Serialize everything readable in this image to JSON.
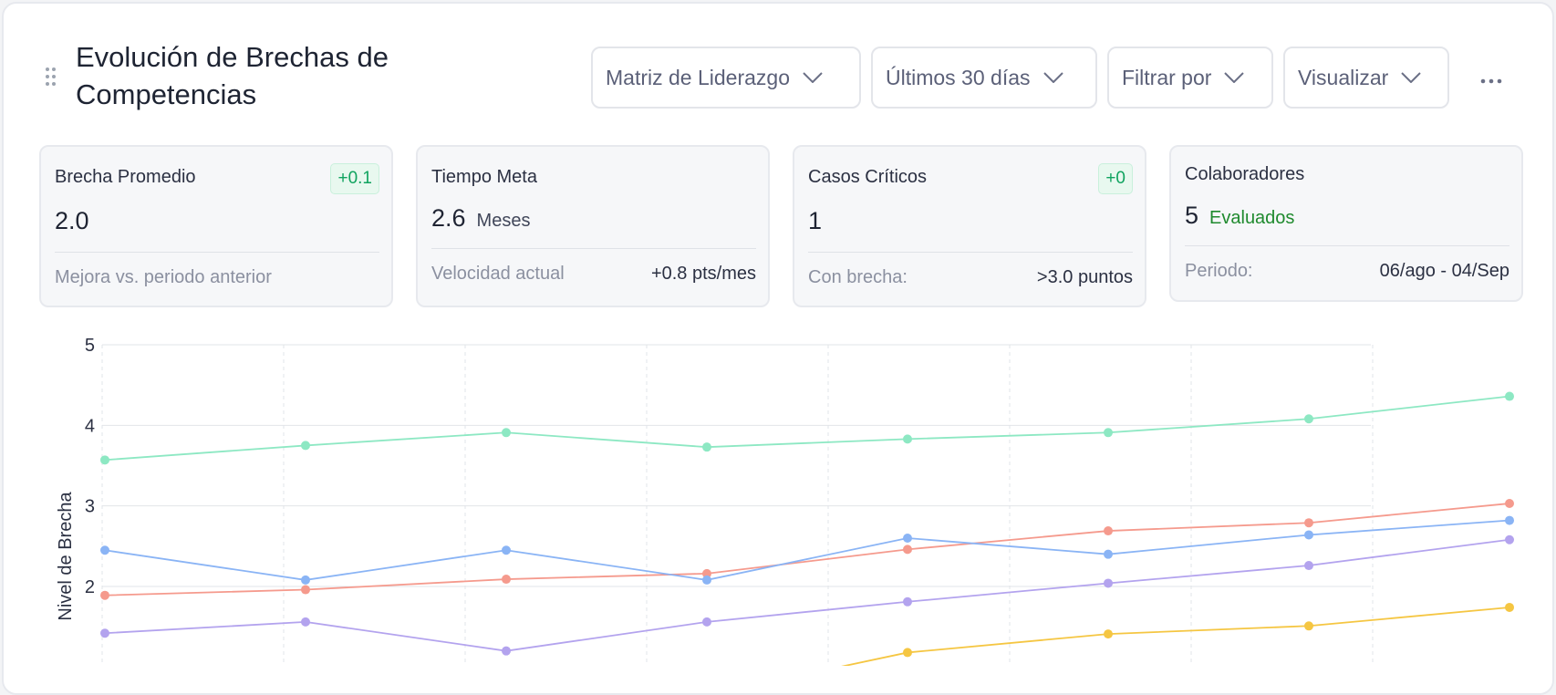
{
  "header": {
    "title": "Evolución de Brechas de Competencias",
    "dropdowns": [
      {
        "label": "Matriz de Liderazgo"
      },
      {
        "label": "Últimos 30 días"
      },
      {
        "label": "Filtrar por"
      },
      {
        "label": "Visualizar"
      }
    ]
  },
  "cards": [
    {
      "title": "Brecha Promedio",
      "badge": "+0.1",
      "value": "2.0",
      "unit": "",
      "footer_label": "Mejora vs. periodo anterior",
      "footer_value": ""
    },
    {
      "title": "Tiempo Meta",
      "badge": "",
      "value": "2.6",
      "unit": "Meses",
      "footer_label": "Velocidad actual",
      "footer_value": "+0.8 pts/mes"
    },
    {
      "title": "Casos Críticos",
      "badge": "+0",
      "value": "1",
      "unit": "",
      "footer_label": "Con brecha:",
      "footer_value": ">3.0 puntos"
    },
    {
      "title": "Colaboradores",
      "badge": "",
      "value": "5",
      "unit": "Evaluados",
      "footer_label": "Periodo:",
      "footer_value": "06/ago - 04/Sep"
    }
  ],
  "colors": {
    "green_series": "#8de8c3",
    "red_series": "#f59a8d",
    "blue_series": "#8ab4f5",
    "purple_series": "#b3a3ee",
    "yellow_series": "#f5c642",
    "badge_text": "#10a35f"
  },
  "chart_data": {
    "type": "line",
    "title": "",
    "xlabel": "",
    "ylabel": "Nivel de Brecha",
    "ylim": [
      1.4,
      5
    ],
    "yticks": [
      2,
      3,
      4,
      5
    ],
    "grid": true,
    "x": [
      0,
      1,
      2,
      3,
      4,
      5,
      6,
      7
    ],
    "series": [
      {
        "color": "#8de8c3",
        "values": [
          3.57,
          3.75,
          3.91,
          3.73,
          3.83,
          3.91,
          4.08,
          4.36
        ]
      },
      {
        "color": "#f59a8d",
        "values": [
          1.89,
          1.96,
          2.09,
          2.16,
          2.46,
          2.69,
          2.79,
          3.03
        ]
      },
      {
        "color": "#8ab4f5",
        "values": [
          2.45,
          2.08,
          2.45,
          2.08,
          2.6,
          2.4,
          2.64,
          2.82
        ]
      },
      {
        "color": "#b3a3ee",
        "values": [
          1.42,
          1.56,
          1.2,
          1.56,
          1.81,
          2.04,
          2.26,
          2.58
        ]
      },
      {
        "color": "#f5c642",
        "values": [
          null,
          null,
          null,
          null,
          1.18,
          1.41,
          1.51,
          1.74
        ]
      }
    ]
  }
}
